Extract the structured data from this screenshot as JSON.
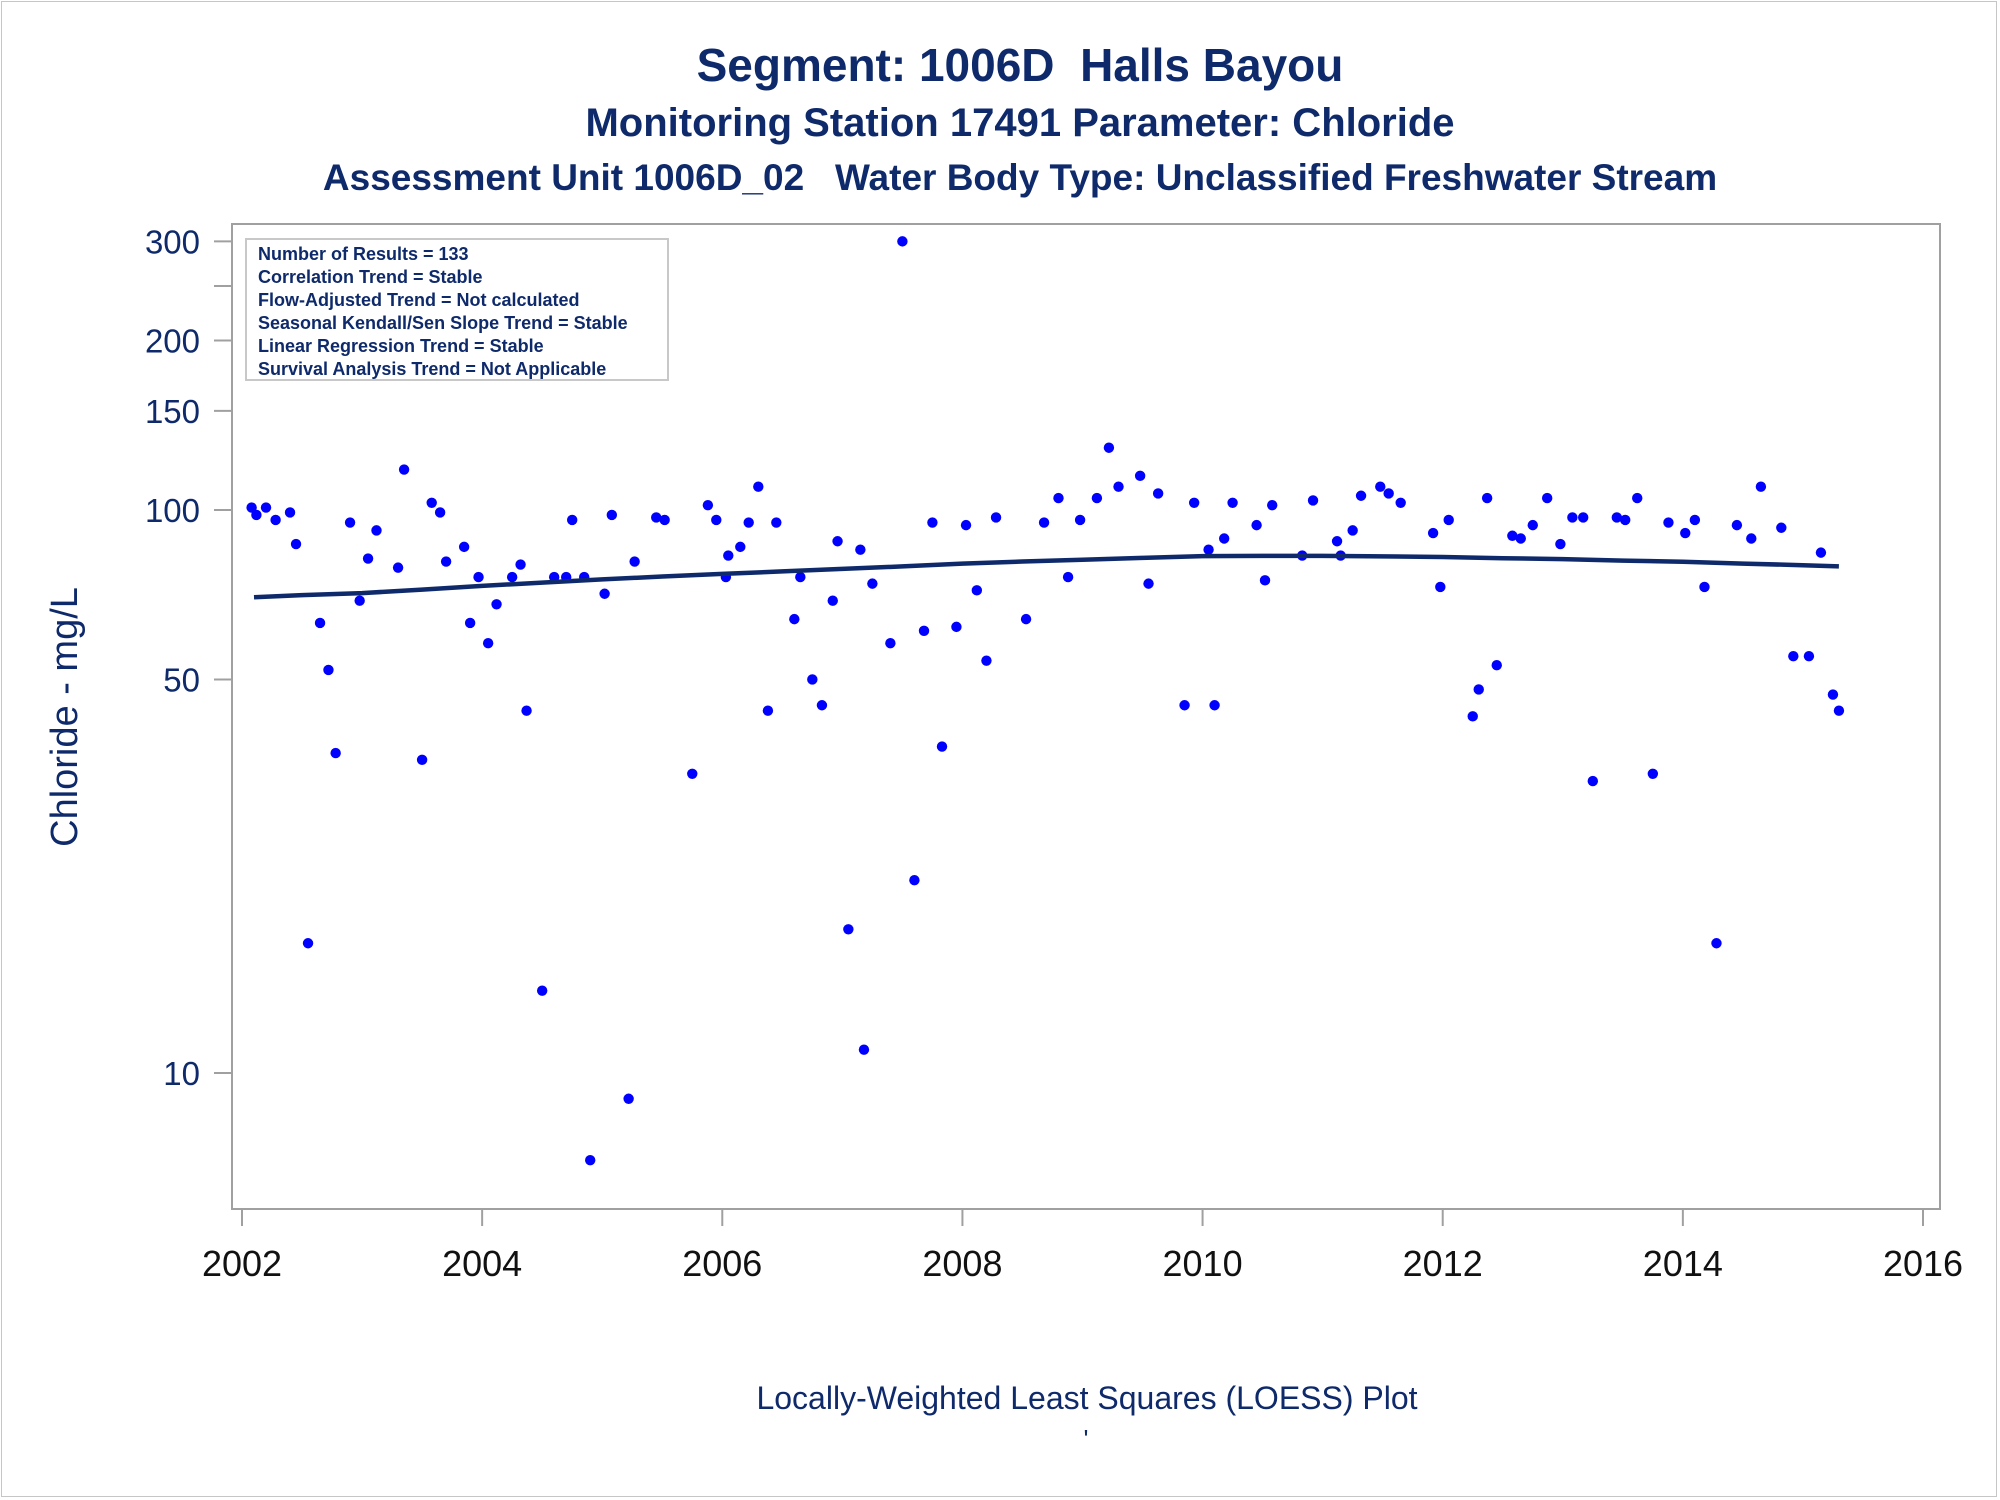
{
  "titles": {
    "line1": "Segment: 1006D  Halls Bayou",
    "line2": "Monitoring Station 17491 Parameter: Chloride",
    "line3": "Assessment Unit 1006D_02   Water Body Type: Unclassified Freshwater Stream"
  },
  "footer": {
    "caption": "Locally-Weighted Least Squares (LOESS) Plot",
    "mark": "'"
  },
  "colors": {
    "points": "#0000ff",
    "loess_line": "#0f2a6b",
    "text": "#0f2a6b",
    "frame": "#a0a0a0"
  },
  "chart_data": {
    "type": "scatter",
    "ylabel": "Chloride - mg/L",
    "xlabel": "",
    "y_scale": "log",
    "xlim": [
      2002,
      2016
    ],
    "ylim": [
      7,
      310
    ],
    "x_ticks": [
      2002,
      2004,
      2006,
      2008,
      2010,
      2012,
      2014,
      2016
    ],
    "y_ticks": [
      10,
      50,
      100,
      150,
      200,
      300
    ],
    "grid": false,
    "stats_box": [
      "Number of Results = 133",
      "Correlation Trend = Stable",
      "Flow-Adjusted Trend = Not calculated",
      "Seasonal Kendall/Sen Slope Trend = Stable",
      "Linear Regression Trend = Stable",
      "Survival Analysis Trend = Not Applicable"
    ],
    "series": [
      {
        "type": "scatter",
        "points": [
          [
            2002.08,
            101
          ],
          [
            2002.12,
            98
          ],
          [
            2002.2,
            101
          ],
          [
            2002.28,
            96
          ],
          [
            2002.4,
            99
          ],
          [
            2002.45,
            87
          ],
          [
            2002.55,
            17
          ],
          [
            2002.65,
            63
          ],
          [
            2002.72,
            52
          ],
          [
            2002.78,
            37
          ],
          [
            2002.9,
            95
          ],
          [
            2002.98,
            69
          ],
          [
            2003.05,
            82
          ],
          [
            2003.12,
            92
          ],
          [
            2003.3,
            79
          ],
          [
            2003.35,
            118
          ],
          [
            2003.5,
            36
          ],
          [
            2003.58,
            103
          ],
          [
            2003.65,
            99
          ],
          [
            2003.7,
            81
          ],
          [
            2003.85,
            86
          ],
          [
            2003.9,
            63
          ],
          [
            2003.97,
            76
          ],
          [
            2004.05,
            58
          ],
          [
            2004.12,
            68
          ],
          [
            2004.25,
            76
          ],
          [
            2004.32,
            80
          ],
          [
            2004.37,
            44
          ],
          [
            2004.5,
            14
          ],
          [
            2004.6,
            76
          ],
          [
            2004.7,
            76
          ],
          [
            2004.75,
            96
          ],
          [
            2004.85,
            76
          ],
          [
            2004.9,
            7
          ],
          [
            2005.02,
            71
          ],
          [
            2005.08,
            98
          ],
          [
            2005.22,
            9
          ],
          [
            2005.27,
            81
          ],
          [
            2005.45,
            97
          ],
          [
            2005.52,
            96
          ],
          [
            2005.75,
            34
          ],
          [
            2005.88,
            102
          ],
          [
            2005.95,
            96
          ],
          [
            2006.03,
            76
          ],
          [
            2006.05,
            83
          ],
          [
            2006.15,
            86
          ],
          [
            2006.22,
            95
          ],
          [
            2006.3,
            110
          ],
          [
            2006.38,
            44
          ],
          [
            2006.45,
            95
          ],
          [
            2006.6,
            64
          ],
          [
            2006.65,
            76
          ],
          [
            2006.75,
            50
          ],
          [
            2006.83,
            45
          ],
          [
            2006.92,
            69
          ],
          [
            2006.96,
            88
          ],
          [
            2007.05,
            18
          ],
          [
            2007.15,
            85
          ],
          [
            2007.18,
            11
          ],
          [
            2007.25,
            74
          ],
          [
            2007.4,
            58
          ],
          [
            2007.5,
            300
          ],
          [
            2007.6,
            22
          ],
          [
            2007.68,
            61
          ],
          [
            2007.75,
            95
          ],
          [
            2007.83,
            38
          ],
          [
            2007.95,
            62
          ],
          [
            2008.03,
            94
          ],
          [
            2008.12,
            72
          ],
          [
            2008.2,
            54
          ],
          [
            2008.28,
            97
          ],
          [
            2008.53,
            64
          ],
          [
            2008.68,
            95
          ],
          [
            2008.8,
            105
          ],
          [
            2008.88,
            76
          ],
          [
            2008.98,
            96
          ],
          [
            2009.12,
            105
          ],
          [
            2009.22,
            129
          ],
          [
            2009.3,
            110
          ],
          [
            2009.48,
            115
          ],
          [
            2009.55,
            74
          ],
          [
            2009.63,
            107
          ],
          [
            2009.85,
            45
          ],
          [
            2009.93,
            103
          ],
          [
            2010.05,
            85
          ],
          [
            2010.1,
            45
          ],
          [
            2010.18,
            89
          ],
          [
            2010.25,
            103
          ],
          [
            2010.45,
            94
          ],
          [
            2010.52,
            75
          ],
          [
            2010.58,
            102
          ],
          [
            2010.83,
            83
          ],
          [
            2010.92,
            104
          ],
          [
            2011.12,
            88
          ],
          [
            2011.15,
            83
          ],
          [
            2011.25,
            92
          ],
          [
            2011.32,
            106
          ],
          [
            2011.48,
            110
          ],
          [
            2011.55,
            107
          ],
          [
            2011.65,
            103
          ],
          [
            2011.92,
            91
          ],
          [
            2011.98,
            73
          ],
          [
            2012.05,
            96
          ],
          [
            2012.25,
            43
          ],
          [
            2012.3,
            48
          ],
          [
            2012.37,
            105
          ],
          [
            2012.45,
            53
          ],
          [
            2012.58,
            90
          ],
          [
            2012.65,
            89
          ],
          [
            2012.75,
            94
          ],
          [
            2012.87,
            105
          ],
          [
            2012.98,
            87
          ],
          [
            2013.08,
            97
          ],
          [
            2013.17,
            97
          ],
          [
            2013.25,
            33
          ],
          [
            2013.45,
            97
          ],
          [
            2013.52,
            96
          ],
          [
            2013.62,
            105
          ],
          [
            2013.75,
            34
          ],
          [
            2013.88,
            95
          ],
          [
            2014.02,
            91
          ],
          [
            2014.1,
            96
          ],
          [
            2014.18,
            73
          ],
          [
            2014.28,
            17
          ],
          [
            2014.45,
            94
          ],
          [
            2014.57,
            89
          ],
          [
            2014.65,
            110
          ],
          [
            2014.82,
            93
          ],
          [
            2014.92,
            55
          ],
          [
            2015.05,
            55
          ],
          [
            2015.15,
            84
          ],
          [
            2015.25,
            47
          ],
          [
            2015.3,
            44
          ]
        ]
      },
      {
        "type": "line",
        "points": [
          [
            2002.1,
            70
          ],
          [
            2002.5,
            70.6
          ],
          [
            2003,
            71.2
          ],
          [
            2003.5,
            72.2
          ],
          [
            2004,
            73.3
          ],
          [
            2004.5,
            74.3
          ],
          [
            2005,
            75.3
          ],
          [
            2005.5,
            76.2
          ],
          [
            2006,
            77
          ],
          [
            2006.5,
            77.8
          ],
          [
            2007,
            78.6
          ],
          [
            2007.5,
            79.4
          ],
          [
            2008,
            80.3
          ],
          [
            2008.5,
            81
          ],
          [
            2009,
            81.6
          ],
          [
            2009.5,
            82.2
          ],
          [
            2010,
            82.8
          ],
          [
            2010.5,
            82.9
          ],
          [
            2011,
            82.9
          ],
          [
            2011.5,
            82.7
          ],
          [
            2012,
            82.5
          ],
          [
            2012.5,
            82.1
          ],
          [
            2013,
            81.8
          ],
          [
            2013.5,
            81.3
          ],
          [
            2014,
            80.9
          ],
          [
            2014.5,
            80.3
          ],
          [
            2015,
            79.8
          ],
          [
            2015.3,
            79.4
          ]
        ]
      }
    ]
  }
}
